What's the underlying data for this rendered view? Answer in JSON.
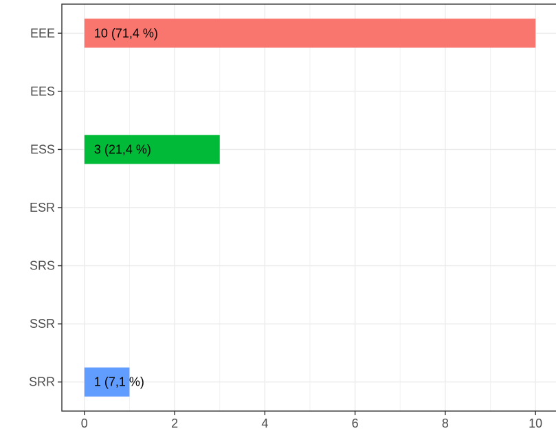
{
  "chart_data": {
    "type": "bar",
    "orientation": "horizontal",
    "categories": [
      "EEE",
      "EES",
      "ESS",
      "ESR",
      "SRS",
      "SSR",
      "SRR"
    ],
    "values": [
      10,
      0,
      3,
      0,
      0,
      0,
      1
    ],
    "labels": [
      "10 (71,4 %)",
      "",
      "3 (21,4 %)",
      "",
      "",
      "",
      "1 (7,1 %)"
    ],
    "colors": [
      "#F8766D",
      null,
      "#00BA38",
      null,
      null,
      null,
      "#619CFF"
    ],
    "x_ticks": [
      0,
      2,
      4,
      6,
      8,
      10
    ],
    "xlim": [
      -0.5,
      10.5
    ],
    "title": "",
    "xlabel": "",
    "ylabel": "",
    "grid": true,
    "legend": "none"
  }
}
